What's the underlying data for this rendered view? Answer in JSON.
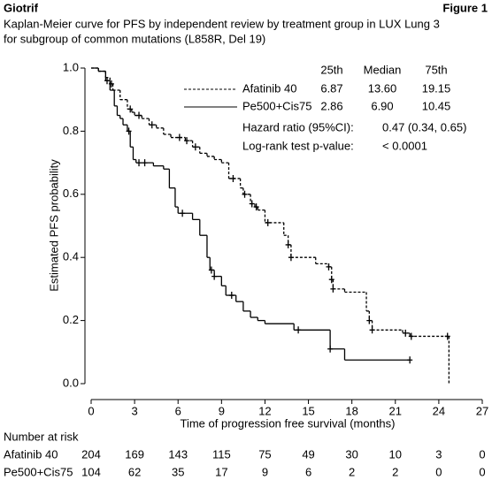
{
  "chart_data": {
    "type": "step",
    "header_left": "Giotrif",
    "header_right": "Figure 1",
    "title": [
      "Kaplan-Meier curve for PFS by independent review by treatment group in LUX Lung 3",
      "for subgroup of common mutations (L858R, Del 19)"
    ],
    "xlabel": "Time of progression free survival (months)",
    "ylabel": "Estimated PFS probability",
    "xlim": [
      0,
      27
    ],
    "xticks": [
      0,
      3,
      6,
      9,
      12,
      15,
      18,
      21,
      24,
      27
    ],
    "ylim": [
      0,
      1
    ],
    "yticks": [
      {
        "value": 0,
        "label": "0.0"
      },
      0.2,
      0.4,
      0.6,
      0.8,
      {
        "value": 1,
        "label": "1.0"
      }
    ],
    "series": [
      {
        "name": "Afatinib 40",
        "color": "#000000",
        "dashed": true,
        "x": [
          0,
          0.5,
          1,
          1.3,
          1.5,
          2,
          2.5,
          2.8,
          3,
          3.5,
          4,
          4.5,
          5,
          5.5,
          6.5,
          7,
          7.5,
          8,
          8.5,
          9,
          9.5,
          10.3,
          10.5,
          11,
          11.3,
          11.5,
          12,
          13.3,
          13.6,
          13.8,
          15.5,
          16.4,
          16.6,
          16.7,
          17.5,
          19,
          19.2,
          19.4,
          21.5,
          22,
          24.7
        ],
        "values": [
          1.0,
          0.99,
          0.97,
          0.95,
          0.93,
          0.9,
          0.87,
          0.86,
          0.85,
          0.84,
          0.82,
          0.81,
          0.79,
          0.78,
          0.77,
          0.75,
          0.73,
          0.72,
          0.71,
          0.7,
          0.65,
          0.62,
          0.6,
          0.57,
          0.56,
          0.55,
          0.51,
          0.47,
          0.44,
          0.4,
          0.38,
          0.37,
          0.33,
          0.3,
          0.29,
          0.23,
          0.2,
          0.17,
          0.16,
          0.15,
          0.0
        ],
        "censored_x": [
          1.4,
          2.7,
          3.3,
          4.2,
          6.1,
          6.6,
          7.2,
          9.8,
          10.6,
          11.1,
          11.4,
          12.2,
          13.6,
          13.8,
          16.4,
          16.6,
          16.7,
          19.2,
          19.4,
          21.7,
          22.1,
          24.6
        ],
        "censored_values": [
          0.95,
          0.87,
          0.85,
          0.82,
          0.78,
          0.77,
          0.75,
          0.65,
          0.6,
          0.57,
          0.56,
          0.51,
          0.44,
          0.4,
          0.37,
          0.33,
          0.3,
          0.2,
          0.17,
          0.16,
          0.15,
          0.15
        ]
      },
      {
        "name": "Pe500+Cis75",
        "color": "#000000",
        "dashed": false,
        "x": [
          0,
          0.5,
          1,
          1.3,
          1.6,
          1.8,
          2,
          2.2,
          2.5,
          2.7,
          2.9,
          3.1,
          4.3,
          5,
          5.4,
          5.8,
          6,
          7,
          7.5,
          8,
          8.2,
          8.5,
          9,
          9.3,
          10,
          10.5,
          11,
          11.5,
          12,
          14,
          16.5,
          17.5,
          22
        ],
        "values": [
          1.0,
          0.99,
          0.96,
          0.93,
          0.88,
          0.85,
          0.84,
          0.82,
          0.8,
          0.75,
          0.71,
          0.7,
          0.69,
          0.68,
          0.62,
          0.56,
          0.54,
          0.52,
          0.47,
          0.4,
          0.36,
          0.34,
          0.31,
          0.28,
          0.26,
          0.23,
          0.21,
          0.2,
          0.19,
          0.17,
          0.11,
          0.075,
          0.075
        ],
        "censored_x": [
          1.1,
          2.6,
          3.3,
          3.7,
          6.3,
          8.3,
          8.5,
          9.7,
          14.3,
          16.5,
          22.0
        ],
        "censored_values": [
          0.96,
          0.8,
          0.7,
          0.7,
          0.54,
          0.36,
          0.34,
          0.28,
          0.17,
          0.11,
          0.075
        ]
      }
    ],
    "quartile_table": {
      "headers": [
        "25th",
        "Median",
        "75th"
      ],
      "rows": [
        [
          "6.87",
          "13.60",
          "19.15"
        ],
        [
          "2.86",
          "6.90",
          "10.45"
        ]
      ]
    },
    "hazard_ratio": {
      "label": "Hazard ratio (95%CI):",
      "value": "0.47 (0.34, 0.65)"
    },
    "logrank": {
      "label": "Log-rank test p-value:",
      "value": "< 0.0001"
    },
    "risk_table": {
      "title": "Number at risk",
      "counts": [
        [
          204,
          169,
          143,
          115,
          75,
          49,
          30,
          10,
          3,
          0
        ],
        [
          104,
          62,
          35,
          17,
          9,
          6,
          2,
          2,
          0,
          0
        ]
      ]
    }
  }
}
